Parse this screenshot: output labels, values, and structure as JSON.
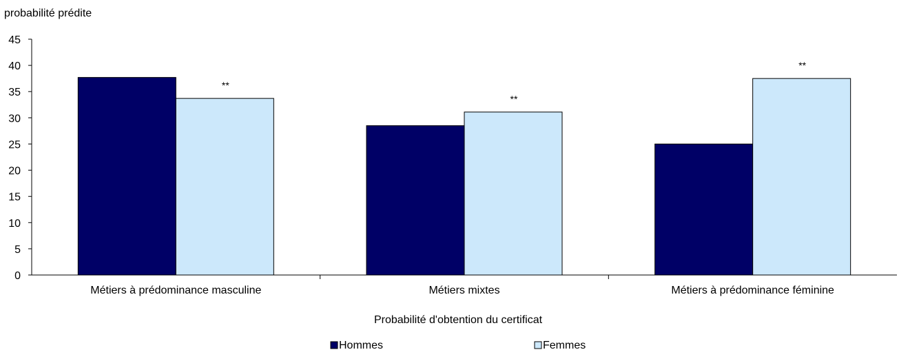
{
  "chart_data": {
    "type": "bar",
    "ylabel": "probabilité prédite",
    "xlabel": "Probabilité d'obtention du certificat",
    "ylim": [
      0,
      45
    ],
    "yticks": [
      0,
      5,
      10,
      15,
      20,
      25,
      30,
      35,
      40,
      45
    ],
    "categories": [
      "Métiers à prédominance masculine",
      "Métiers mixtes",
      "Métiers à prédominance féminine"
    ],
    "series": [
      {
        "name": "Hommes",
        "color": "#000066",
        "values": [
          37.7,
          28.5,
          25.0
        ],
        "annotations": [
          "",
          "",
          ""
        ]
      },
      {
        "name": "Femmes",
        "color": "#cce8fb",
        "values": [
          33.7,
          31.1,
          37.5
        ],
        "annotations": [
          "**",
          "**",
          "**"
        ]
      }
    ],
    "legend_position": "bottom",
    "grid": false
  }
}
